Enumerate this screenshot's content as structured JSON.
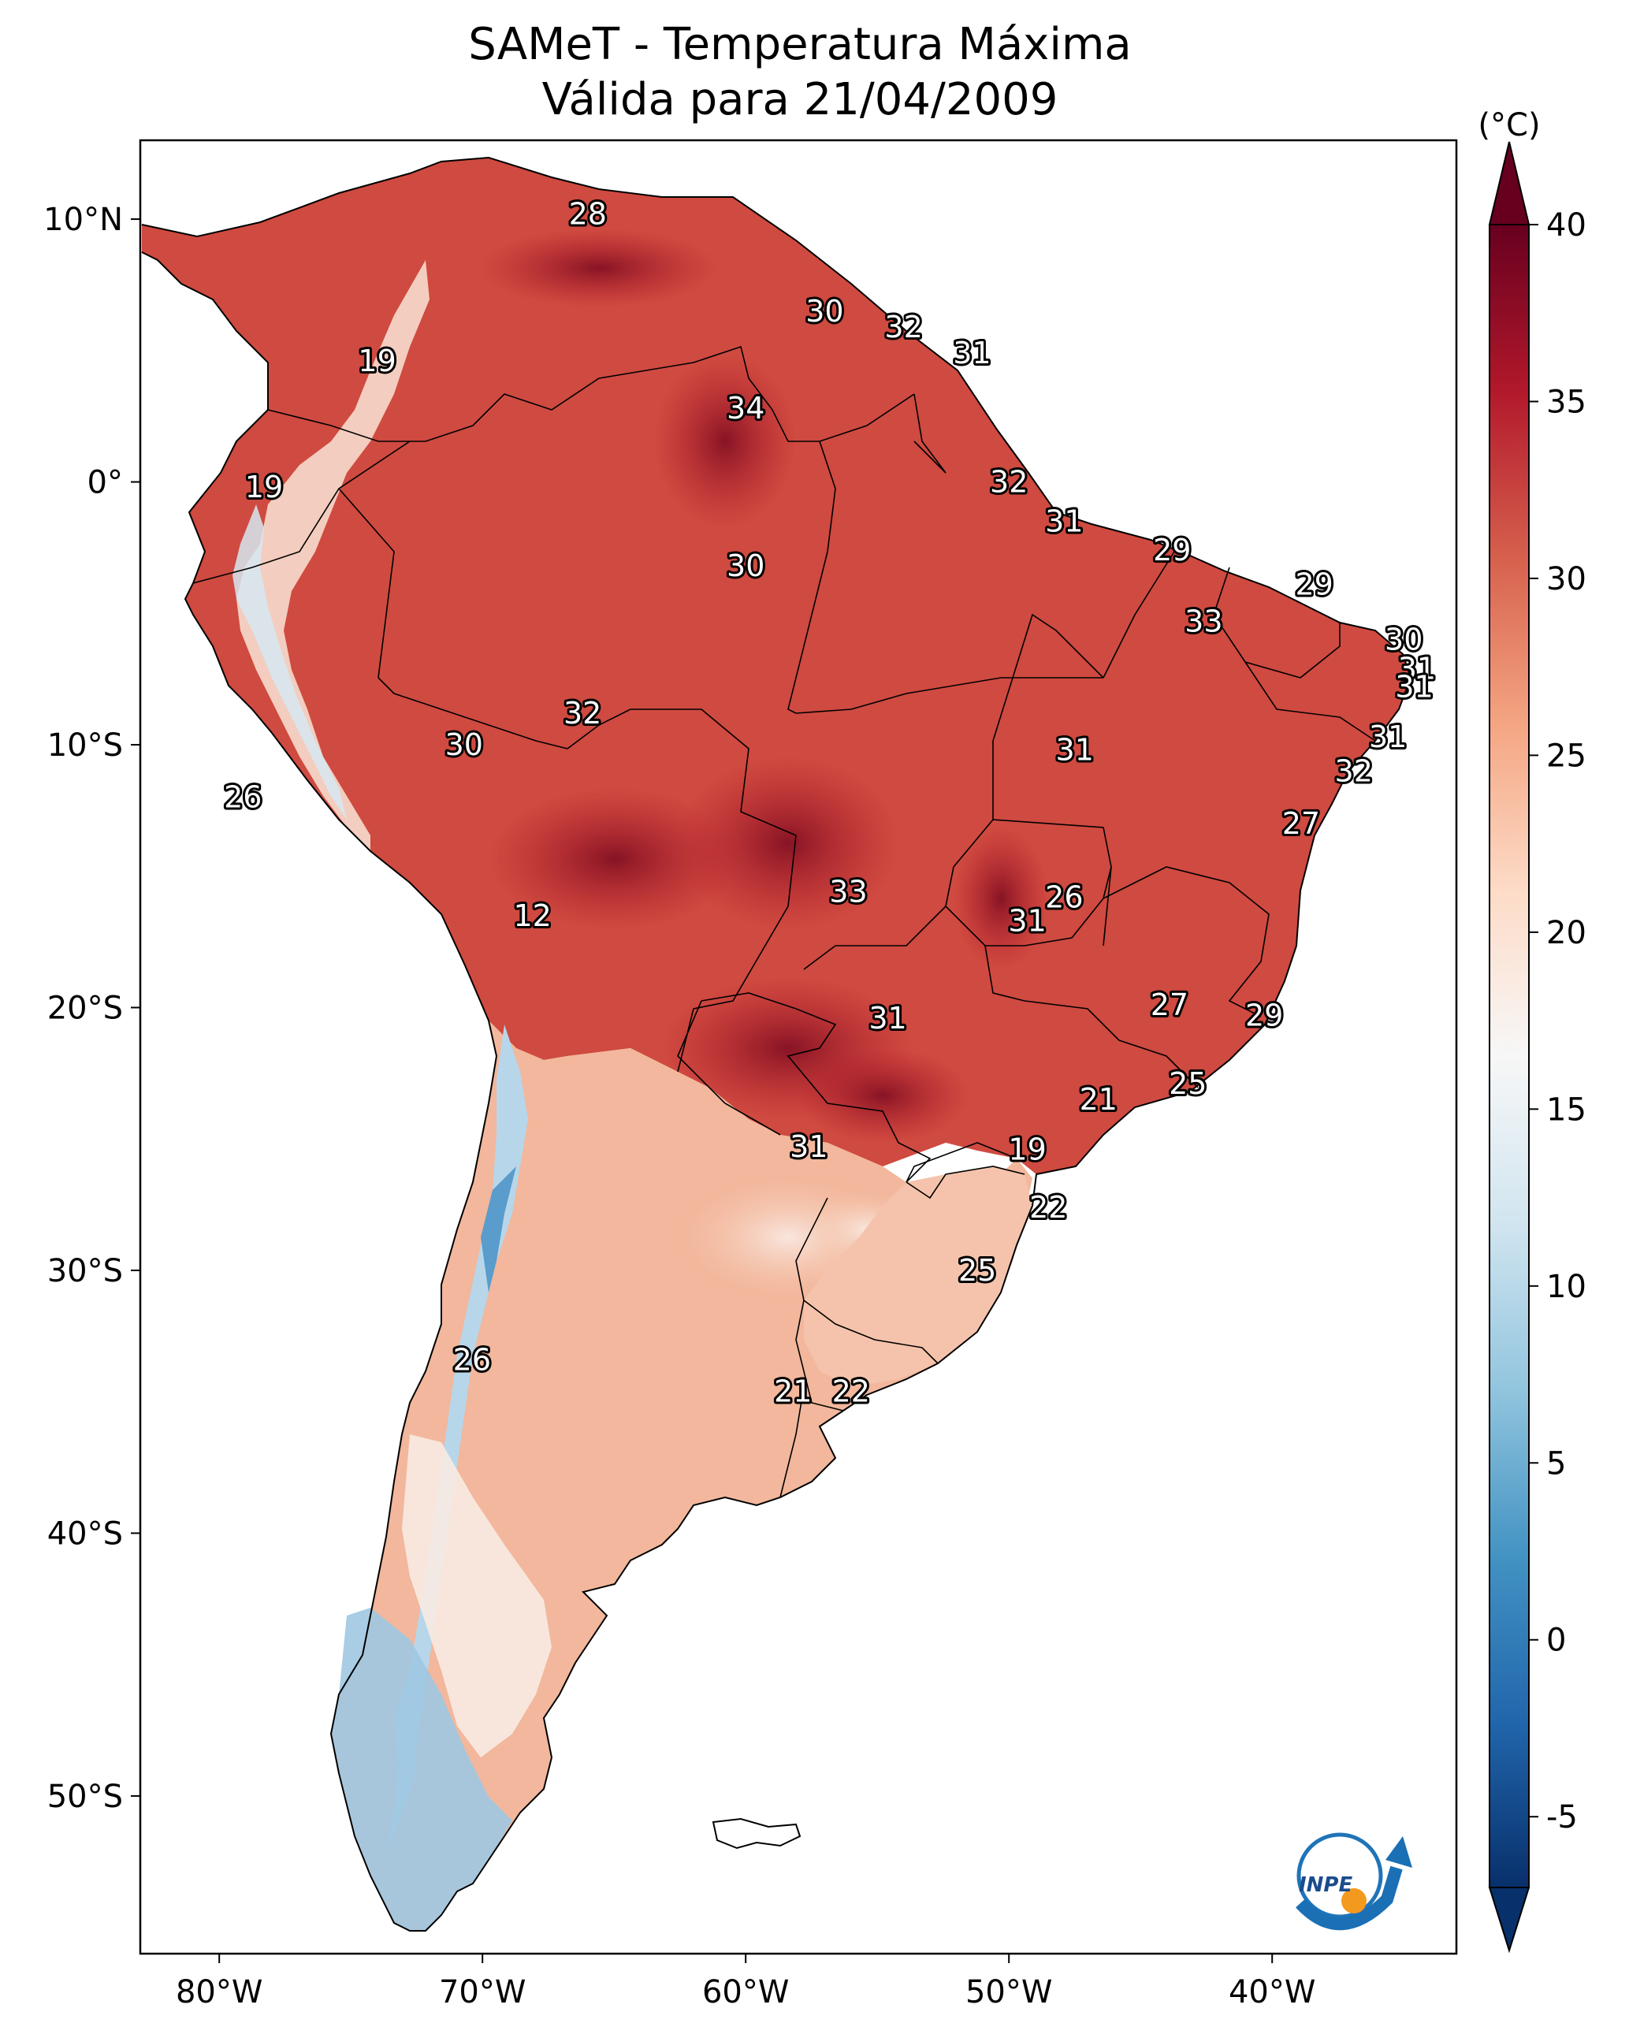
{
  "title": {
    "line1": "SAMeT - Temperatura Máxima",
    "line2": "Válida para 21/04/2009"
  },
  "map": {
    "lon_ticks": [
      "80°W",
      "70°W",
      "60°W",
      "50°W",
      "40°W"
    ],
    "lat_ticks": [
      "10°N",
      "0°",
      "10°S",
      "20°S",
      "30°S",
      "40°S",
      "50°S"
    ],
    "extent": {
      "lon": [
        -83,
        -33
      ],
      "lat": [
        -56,
        13
      ]
    }
  },
  "colorbar": {
    "unit": "(°C)",
    "tick_labels": [
      "40",
      "35",
      "30",
      "25",
      "20",
      "15",
      "10",
      "5",
      "0",
      "-5"
    ],
    "range": [
      -7,
      40
    ],
    "colors": [
      "#08306b",
      "#2166ac",
      "#4393c3",
      "#92c5de",
      "#d1e5f0",
      "#f7f7f7",
      "#fddbc7",
      "#f4a582",
      "#d6604d",
      "#b2182b",
      "#67001f"
    ]
  },
  "station_labels": [
    {
      "v": "28",
      "lon": -66.0,
      "lat": 10.2
    },
    {
      "v": "19",
      "lon": -74.0,
      "lat": 4.6
    },
    {
      "v": "19",
      "lon": -78.3,
      "lat": -0.2
    },
    {
      "v": "30",
      "lon": -57.0,
      "lat": 6.5
    },
    {
      "v": "32",
      "lon": -54.0,
      "lat": 5.9
    },
    {
      "v": "31",
      "lon": -51.4,
      "lat": 4.9
    },
    {
      "v": "34",
      "lon": -60.0,
      "lat": 2.8
    },
    {
      "v": "32",
      "lon": -50.0,
      "lat": 0.0
    },
    {
      "v": "31",
      "lon": -47.9,
      "lat": -1.5
    },
    {
      "v": "30",
      "lon": -60.0,
      "lat": -3.2
    },
    {
      "v": "29",
      "lon": -43.8,
      "lat": -2.6
    },
    {
      "v": "29",
      "lon": -38.4,
      "lat": -3.9
    },
    {
      "v": "33",
      "lon": -42.6,
      "lat": -5.3
    },
    {
      "v": "30",
      "lon": -35.0,
      "lat": -6.0
    },
    {
      "v": "31",
      "lon": -34.5,
      "lat": -7.1
    },
    {
      "v": "31",
      "lon": -34.6,
      "lat": -7.8
    },
    {
      "v": "32",
      "lon": -66.2,
      "lat": -8.8
    },
    {
      "v": "30",
      "lon": -70.7,
      "lat": -10.0
    },
    {
      "v": "31",
      "lon": -47.5,
      "lat": -10.2
    },
    {
      "v": "31",
      "lon": -35.6,
      "lat": -9.7
    },
    {
      "v": "32",
      "lon": -36.9,
      "lat": -11.0
    },
    {
      "v": "26",
      "lon": -79.1,
      "lat": -12.0
    },
    {
      "v": "27",
      "lon": -38.9,
      "lat": -13.0
    },
    {
      "v": "12",
      "lon": -68.1,
      "lat": -16.5
    },
    {
      "v": "33",
      "lon": -56.1,
      "lat": -15.6
    },
    {
      "v": "26",
      "lon": -47.9,
      "lat": -15.8
    },
    {
      "v": "31",
      "lon": -49.3,
      "lat": -16.7
    },
    {
      "v": "27",
      "lon": -43.9,
      "lat": -19.9
    },
    {
      "v": "29",
      "lon": -40.3,
      "lat": -20.3
    },
    {
      "v": "31",
      "lon": -54.6,
      "lat": -20.4
    },
    {
      "v": "25",
      "lon": -43.2,
      "lat": -22.9
    },
    {
      "v": "21",
      "lon": -46.6,
      "lat": -23.5
    },
    {
      "v": "31",
      "lon": -57.6,
      "lat": -25.3
    },
    {
      "v": "19",
      "lon": -49.3,
      "lat": -25.4
    },
    {
      "v": "22",
      "lon": -48.5,
      "lat": -27.6
    },
    {
      "v": "25",
      "lon": -51.2,
      "lat": -30.0
    },
    {
      "v": "26",
      "lon": -70.4,
      "lat": -33.4
    },
    {
      "v": "21",
      "lon": -58.2,
      "lat": -34.6
    },
    {
      "v": "22",
      "lon": -56.0,
      "lat": -34.6
    }
  ],
  "logo": {
    "text": "INPE"
  }
}
